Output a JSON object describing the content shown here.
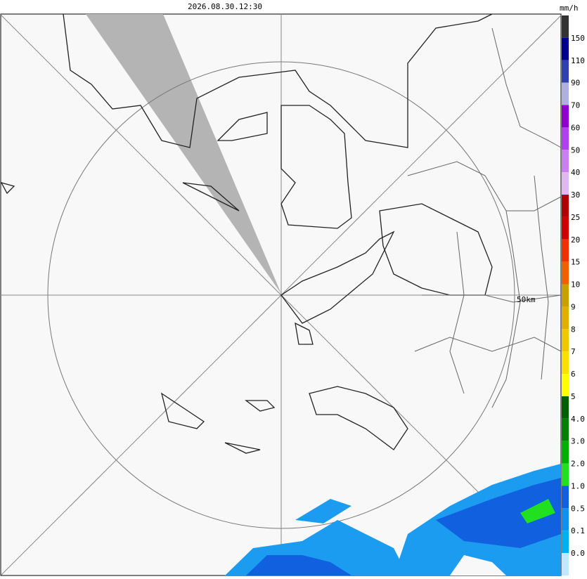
{
  "header": {
    "timestamp": "2026.08.30.12:30"
  },
  "legend": {
    "unit": "mm/h",
    "labels": [
      "150",
      "110",
      "90",
      "70",
      "60",
      "50",
      "40",
      "30",
      "25",
      "20",
      "15",
      "10",
      "9",
      "8",
      "7",
      "6",
      "5",
      "4.0",
      "3.0",
      "2.0",
      "1.0",
      "0.5",
      "0.1",
      "0.0"
    ],
    "colors": [
      "#333333",
      "#000090",
      "#3040b0",
      "#b0b0e0",
      "#9000d0",
      "#b040f0",
      "#c880f0",
      "#e0b8f0",
      "#b00000",
      "#d00000",
      "#f03000",
      "#f06000",
      "#c8a000",
      "#e0b000",
      "#f0c800",
      "#f8e000",
      "#ffff00",
      "#006000",
      "#008000",
      "#00b000",
      "#20e020",
      "#1060e0",
      "#1090f0",
      "#00b0f0",
      "#c0e8ff"
    ]
  },
  "map": {
    "range_label": "50km"
  }
}
